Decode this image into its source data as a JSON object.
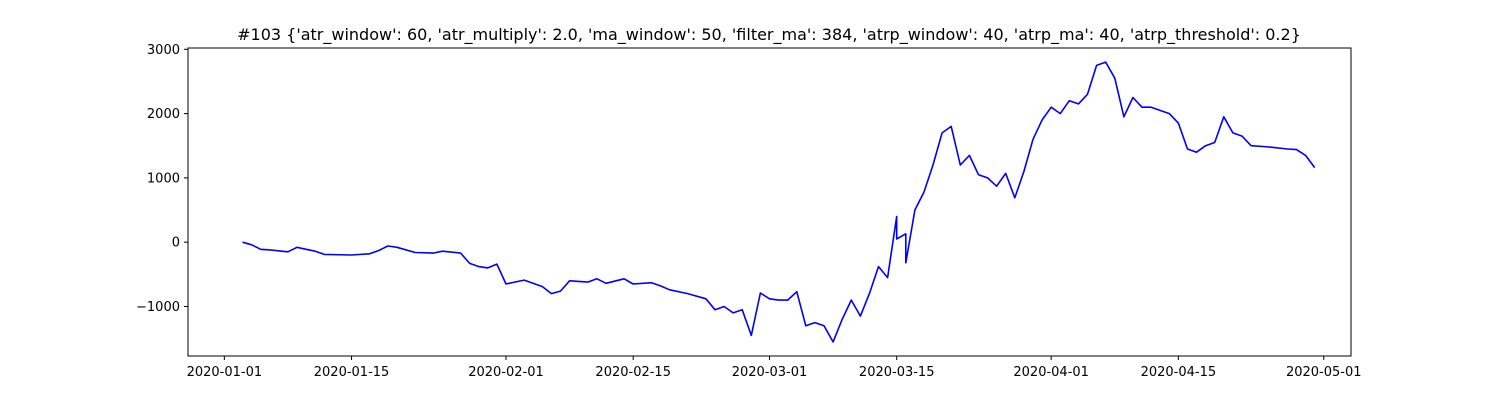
{
  "chart_data": {
    "type": "line",
    "title": "#103 {'atr_window': 60, 'atr_multiply': 2.0, 'ma_window': 50, 'filter_ma': 384, 'atrp_window': 40, 'atrp_ma': 40, 'atrp_threshold': 0.2}",
    "xlabel": "",
    "ylabel": "",
    "x_type": "date",
    "xlim": [
      "2019-12-28",
      "2020-05-04"
    ],
    "ylim": [
      -1770,
      3020
    ],
    "grid": false,
    "x_ticks": [
      "2020-01-01",
      "2020-01-15",
      "2020-02-01",
      "2020-02-15",
      "2020-03-01",
      "2020-03-15",
      "2020-04-01",
      "2020-04-15",
      "2020-05-01"
    ],
    "y_ticks": [
      -1000,
      0,
      1000,
      2000,
      3000
    ],
    "y_tick_labels": [
      "−1000",
      "0",
      "1000",
      "2000",
      "3000"
    ],
    "series": [
      {
        "color": "#0000ff",
        "points": [
          [
            "2020-01-03",
            0
          ],
          [
            "2020-01-04",
            -40
          ],
          [
            "2020-01-05",
            -110
          ],
          [
            "2020-01-06",
            -120
          ],
          [
            "2020-01-08",
            -150
          ],
          [
            "2020-01-09",
            -80
          ],
          [
            "2020-01-10",
            -110
          ],
          [
            "2020-01-11",
            -140
          ],
          [
            "2020-01-12",
            -190
          ],
          [
            "2020-01-15",
            -200
          ],
          [
            "2020-01-17",
            -180
          ],
          [
            "2020-01-18",
            -130
          ],
          [
            "2020-01-19",
            -60
          ],
          [
            "2020-01-20",
            -80
          ],
          [
            "2020-01-22",
            -160
          ],
          [
            "2020-01-24",
            -170
          ],
          [
            "2020-01-25",
            -140
          ],
          [
            "2020-01-27",
            -170
          ],
          [
            "2020-01-28",
            -330
          ],
          [
            "2020-01-29",
            -380
          ],
          [
            "2020-01-30",
            -400
          ],
          [
            "2020-01-31",
            -340
          ],
          [
            "2020-02-01",
            -650
          ],
          [
            "2020-02-03",
            -590
          ],
          [
            "2020-02-05",
            -690
          ],
          [
            "2020-02-06",
            -800
          ],
          [
            "2020-02-07",
            -760
          ],
          [
            "2020-02-08",
            -600
          ],
          [
            "2020-02-10",
            -620
          ],
          [
            "2020-02-11",
            -570
          ],
          [
            "2020-02-12",
            -640
          ],
          [
            "2020-02-14",
            -570
          ],
          [
            "2020-02-15",
            -650
          ],
          [
            "2020-02-17",
            -630
          ],
          [
            "2020-02-18",
            -680
          ],
          [
            "2020-02-19",
            -740
          ],
          [
            "2020-02-21",
            -800
          ],
          [
            "2020-02-23",
            -880
          ],
          [
            "2020-02-24",
            -1050
          ],
          [
            "2020-02-25",
            -1000
          ],
          [
            "2020-02-26",
            -1100
          ],
          [
            "2020-02-27",
            -1050
          ],
          [
            "2020-02-28",
            -1450
          ],
          [
            "2020-02-29",
            -790
          ],
          [
            "2020-03-01",
            -880
          ],
          [
            "2020-03-02",
            -900
          ],
          [
            "2020-03-03",
            -900
          ],
          [
            "2020-03-04",
            -770
          ],
          [
            "2020-03-05",
            -1300
          ],
          [
            "2020-03-06",
            -1250
          ],
          [
            "2020-03-07",
            -1300
          ],
          [
            "2020-03-08",
            -1550
          ],
          [
            "2020-03-09",
            -1200
          ],
          [
            "2020-03-10",
            -900
          ],
          [
            "2020-03-11",
            -1150
          ],
          [
            "2020-03-12",
            -800
          ],
          [
            "2020-03-13",
            -380
          ],
          [
            "2020-03-14",
            -550
          ],
          [
            "2020-03-15",
            400
          ],
          [
            "2020-03-15",
            50
          ],
          [
            "2020-03-16",
            130
          ],
          [
            "2020-03-16",
            -320
          ],
          [
            "2020-03-17",
            500
          ],
          [
            "2020-03-18",
            780
          ],
          [
            "2020-03-19",
            1200
          ],
          [
            "2020-03-20",
            1700
          ],
          [
            "2020-03-21",
            1800
          ],
          [
            "2020-03-22",
            1200
          ],
          [
            "2020-03-23",
            1350
          ],
          [
            "2020-03-24",
            1050
          ],
          [
            "2020-03-25",
            1000
          ],
          [
            "2020-03-26",
            870
          ],
          [
            "2020-03-27",
            1070
          ],
          [
            "2020-03-28",
            690
          ],
          [
            "2020-03-29",
            1100
          ],
          [
            "2020-03-30",
            1600
          ],
          [
            "2020-03-31",
            1900
          ],
          [
            "2020-04-01",
            2100
          ],
          [
            "2020-04-02",
            2000
          ],
          [
            "2020-04-03",
            2200
          ],
          [
            "2020-04-04",
            2150
          ],
          [
            "2020-04-05",
            2300
          ],
          [
            "2020-04-06",
            2750
          ],
          [
            "2020-04-07",
            2800
          ],
          [
            "2020-04-08",
            2550
          ],
          [
            "2020-04-09",
            1950
          ],
          [
            "2020-04-10",
            2250
          ],
          [
            "2020-04-11",
            2100
          ],
          [
            "2020-04-12",
            2100
          ],
          [
            "2020-04-14",
            2000
          ],
          [
            "2020-04-15",
            1850
          ],
          [
            "2020-04-16",
            1450
          ],
          [
            "2020-04-17",
            1400
          ],
          [
            "2020-04-18",
            1500
          ],
          [
            "2020-04-19",
            1550
          ],
          [
            "2020-04-20",
            1950
          ],
          [
            "2020-04-21",
            1700
          ],
          [
            "2020-04-22",
            1650
          ],
          [
            "2020-04-23",
            1500
          ],
          [
            "2020-04-25",
            1480
          ],
          [
            "2020-04-27",
            1450
          ],
          [
            "2020-04-28",
            1440
          ],
          [
            "2020-04-29",
            1350
          ],
          [
            "2020-04-30",
            1160
          ]
        ]
      }
    ]
  }
}
